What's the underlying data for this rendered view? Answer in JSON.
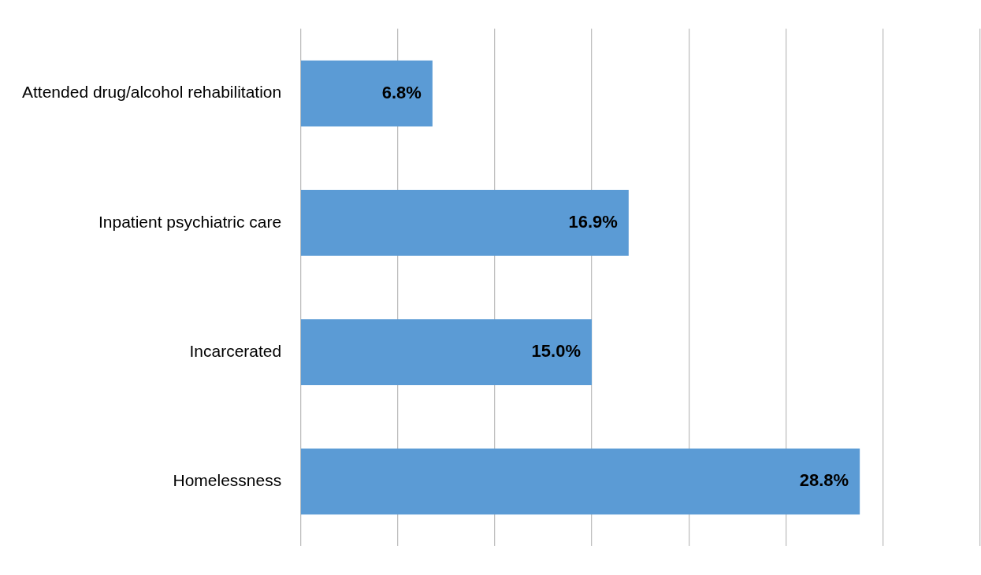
{
  "chart_data": {
    "type": "bar",
    "orientation": "horizontal",
    "categories": [
      "Attended drug/alcohol rehabilitation",
      "Inpatient psychiatric care",
      "Incarcerated",
      "Homelessness"
    ],
    "values": [
      6.8,
      16.9,
      15.0,
      28.8
    ],
    "value_labels": [
      "6.8%",
      "16.9%",
      "15.0%",
      "28.8%"
    ],
    "color": "#5b9bd5",
    "xlim": [
      0,
      35
    ],
    "xticks": [
      {
        "value": 0,
        "label": null
      },
      {
        "value": 5,
        "label": null
      },
      {
        "value": 10,
        "label": null
      },
      {
        "value": 15,
        "label": null
      },
      {
        "value": 20,
        "label": null
      },
      {
        "value": 25,
        "label": null
      },
      {
        "value": 30,
        "label": null
      },
      {
        "value": 35,
        "label": null
      }
    ],
    "grid": "x",
    "tick_labels": "y",
    "legend": false
  }
}
